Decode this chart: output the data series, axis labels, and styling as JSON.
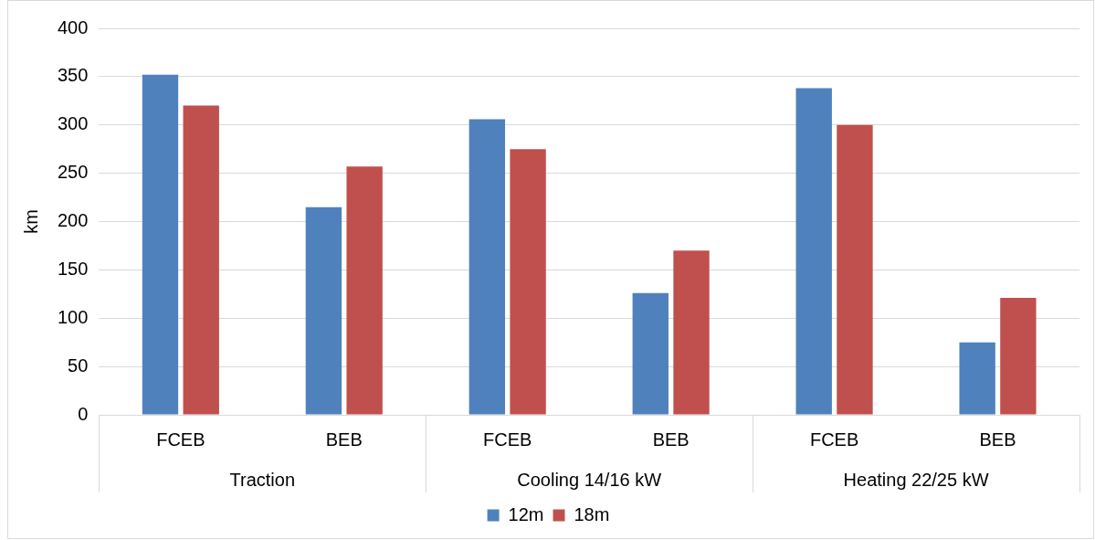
{
  "chart_data": {
    "type": "bar",
    "ylabel": "km",
    "categories": [
      "FCEB",
      "BEB",
      "FCEB",
      "BEB",
      "FCEB",
      "BEB"
    ],
    "annotations": [
      "Traction",
      "Cooling 14/16 kW",
      "Heating 22/25 kW"
    ],
    "series": [
      {
        "name": "12m",
        "color": "#4f81bd",
        "values": [
          352,
          215,
          306,
          126,
          338,
          75
        ]
      },
      {
        "name": "18m",
        "color": "#c0504d",
        "values": [
          320,
          257,
          275,
          170,
          300,
          121
        ]
      }
    ],
    "ylim": [
      0,
      400
    ],
    "yticks": [
      0,
      50,
      100,
      150,
      200,
      250,
      300,
      350,
      400
    ],
    "grid": "y",
    "legend": "bottom"
  }
}
